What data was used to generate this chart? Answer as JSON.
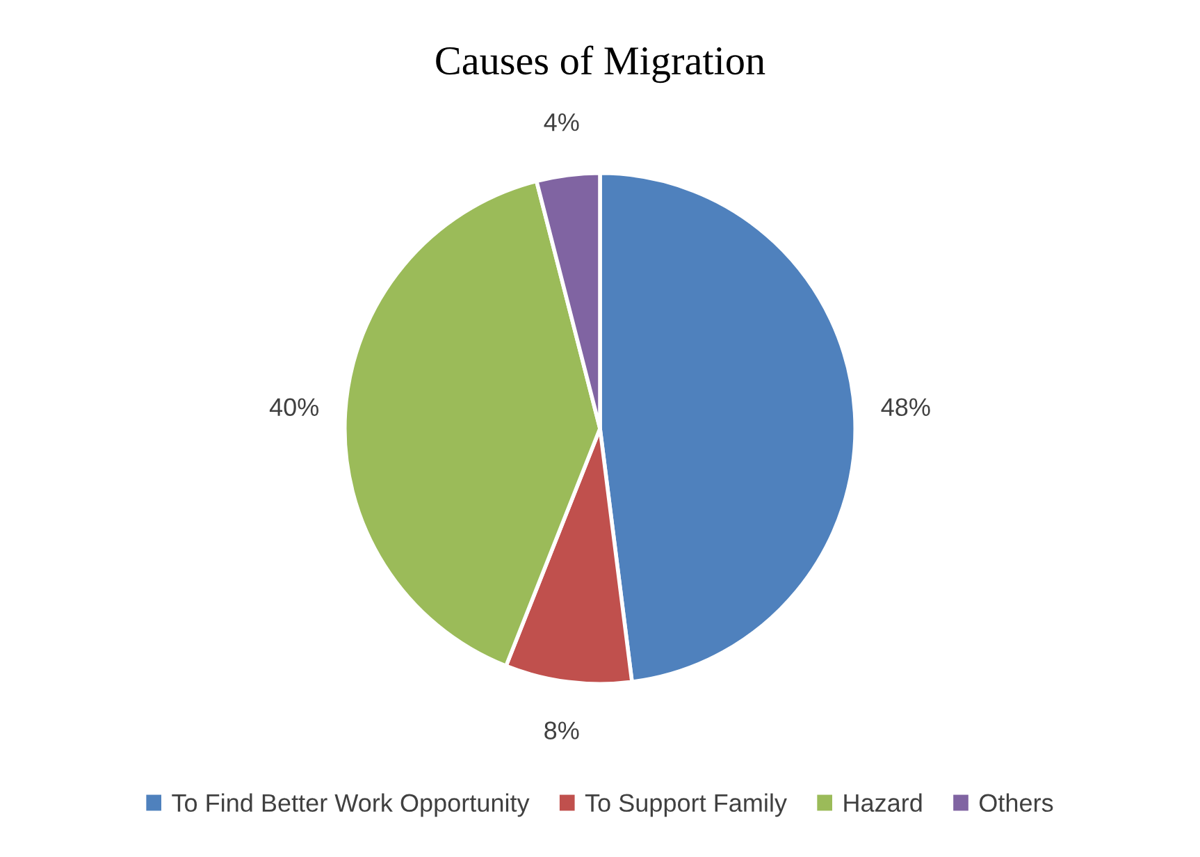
{
  "chart_data": {
    "type": "pie",
    "title": "Causes of Migration",
    "categories": [
      "To Find Better Work Opportunity",
      "To Support Family",
      "Hazard",
      "Others"
    ],
    "values": [
      48,
      8,
      40,
      4
    ],
    "colors": [
      "#4f81bd",
      "#c0504d",
      "#9bbb59",
      "#8064a2"
    ],
    "value_labels": [
      "48%",
      "8%",
      "40%",
      "4%"
    ],
    "legend": "bottom"
  }
}
